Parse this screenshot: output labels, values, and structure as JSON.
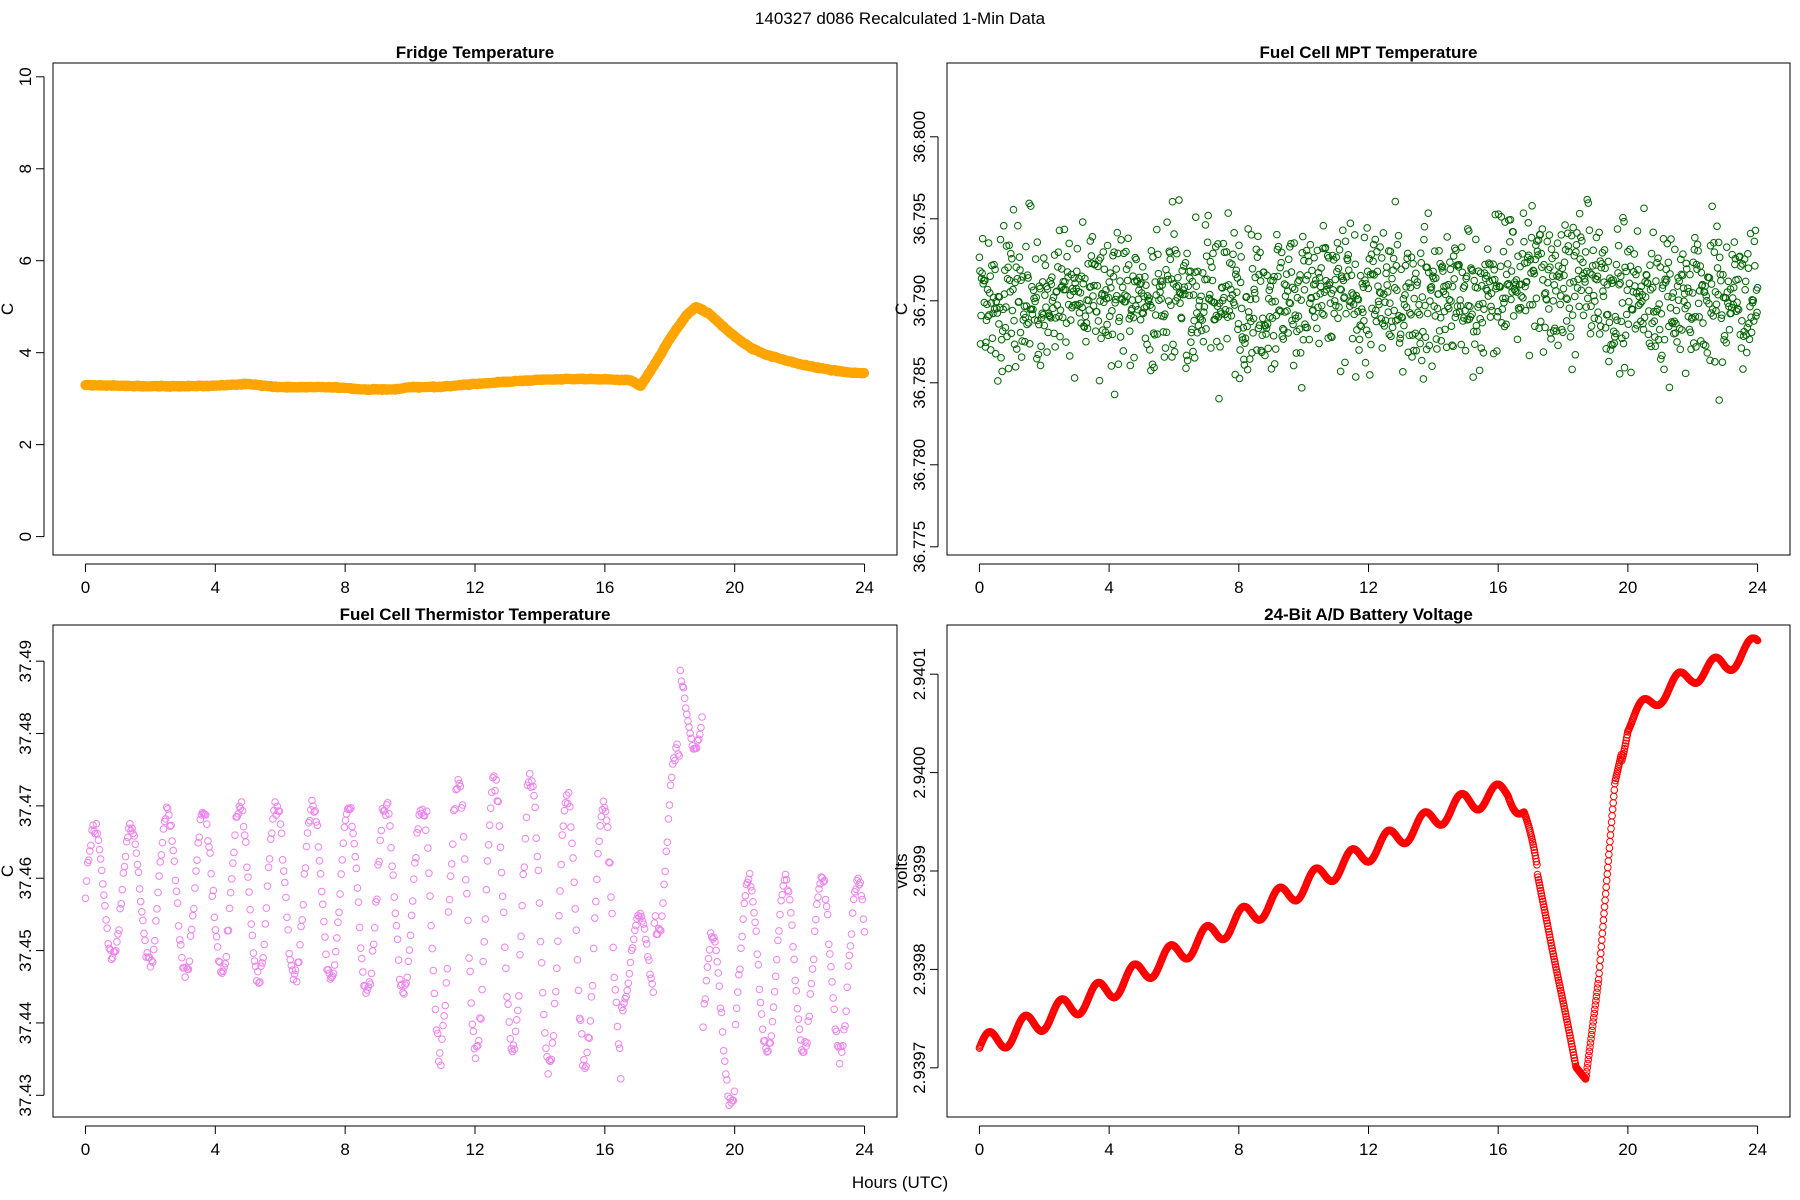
{
  "figure": {
    "title": "140327   d086   Recalculated 1-Min Data",
    "xlabel": "Hours (UTC)"
  },
  "chart_data": [
    {
      "type": "line",
      "title": "Fridge Temperature",
      "ylabel": "C",
      "xlim": [
        -1,
        25
      ],
      "ylim": [
        -0.4,
        10.3
      ],
      "xticks": [
        0,
        4,
        8,
        12,
        16,
        20,
        24
      ],
      "yticks": [
        0,
        2,
        4,
        6,
        8,
        10
      ],
      "ytick_labels": [
        "0",
        "2",
        "4",
        "6",
        "8",
        "10"
      ],
      "color": "#FFA500",
      "x": [
        0,
        1,
        2,
        3,
        4,
        5,
        6,
        7,
        8,
        8.5,
        9,
        9.5,
        10,
        11,
        12,
        13,
        14,
        15,
        16,
        16.8,
        17.1,
        17.5,
        18,
        18.5,
        18.8,
        19.2,
        19.6,
        20,
        20.5,
        21,
        21.5,
        22,
        22.5,
        23,
        23.5,
        24
      ],
      "y": [
        3.3,
        3.28,
        3.27,
        3.27,
        3.28,
        3.32,
        3.25,
        3.25,
        3.24,
        3.2,
        3.2,
        3.2,
        3.25,
        3.26,
        3.32,
        3.37,
        3.41,
        3.43,
        3.42,
        3.4,
        3.27,
        3.7,
        4.3,
        4.8,
        5.0,
        4.85,
        4.6,
        4.35,
        4.1,
        3.95,
        3.85,
        3.75,
        3.68,
        3.62,
        3.57,
        3.55
      ]
    },
    {
      "type": "scatter",
      "title": "Fuel Cell MPT Temperature",
      "ylabel": "C",
      "xlim": [
        -1,
        25
      ],
      "ylim": [
        36.7745,
        36.8045
      ],
      "xticks": [
        0,
        4,
        8,
        12,
        16,
        20,
        24
      ],
      "yticks": [
        36.775,
        36.78,
        36.785,
        36.79,
        36.795,
        36.8
      ],
      "ytick_labels": [
        "36.775",
        "36.780",
        "36.785",
        "36.790",
        "36.795",
        "36.800"
      ],
      "color": "#006400",
      "x_range": [
        0,
        24
      ],
      "n_points": 1440,
      "center": 36.7903,
      "spread": 0.0036
    },
    {
      "type": "scatter",
      "title": "Fuel Cell Thermistor Temperature",
      "ylabel": "C",
      "xlim": [
        -1,
        25
      ],
      "ylim": [
        37.427,
        37.495
      ],
      "xticks": [
        0,
        4,
        8,
        12,
        16,
        20,
        24
      ],
      "yticks": [
        37.43,
        37.44,
        37.45,
        37.46,
        37.47,
        37.48,
        37.49
      ],
      "ytick_labels": [
        "37.43",
        "37.44",
        "37.45",
        "37.46",
        "37.47",
        "37.48",
        "37.49"
      ],
      "color": "#EE82EE",
      "x_range": [
        0,
        24
      ],
      "n_points": 720,
      "period_hours": 1.12,
      "segments": [
        {
          "x": [
            0,
            2
          ],
          "lo": 37.449,
          "hi": 37.467
        },
        {
          "x": [
            2,
            4.5
          ],
          "lo": 37.447,
          "hi": 37.469
        },
        {
          "x": [
            4.5,
            8
          ],
          "lo": 37.446,
          "hi": 37.47
        },
        {
          "x": [
            8,
            10.5
          ],
          "lo": 37.444,
          "hi": 37.47
        },
        {
          "x": [
            10.5,
            14
          ],
          "lo": 37.436,
          "hi": 37.474
        },
        {
          "x": [
            14,
            16.5
          ],
          "lo": 37.434,
          "hi": 37.471
        },
        {
          "x": [
            16.5,
            17.5
          ],
          "lo": 37.442,
          "hi": 37.455
        },
        {
          "x": [
            17.5,
            18.3
          ],
          "lo": 37.452,
          "hi": 37.478
        },
        {
          "x": [
            18.3,
            19
          ],
          "lo": 37.478,
          "hi": 37.49
        },
        {
          "x": [
            19,
            20
          ],
          "lo": 37.429,
          "hi": 37.452
        },
        {
          "x": [
            20,
            24
          ],
          "lo": 37.436,
          "hi": 37.46
        }
      ]
    },
    {
      "type": "line",
      "title": "24-Bit A/D Battery Voltage",
      "ylabel": "volts",
      "xlim": [
        -1,
        25
      ],
      "ylim": [
        2.93965,
        2.94015
      ],
      "xticks": [
        0,
        4,
        8,
        12,
        16,
        20,
        24
      ],
      "yticks": [
        2.9397,
        2.9398,
        2.9399,
        2.94,
        2.9401
      ],
      "ytick_labels": [
        "2.9397",
        "2.9398",
        "2.9399",
        "2.9400",
        "2.9401"
      ],
      "color": "#FF0000",
      "marker": "circle",
      "baseline": {
        "x": [
          0,
          4,
          8,
          12,
          15,
          16.3,
          16.8,
          17.5,
          18.1,
          18.4,
          18.7,
          19.1,
          19.6,
          20,
          21,
          22,
          23,
          24
        ],
        "y": [
          2.93972,
          2.93978,
          2.93985,
          2.93992,
          2.93997,
          2.93998,
          2.93996,
          2.93985,
          2.93975,
          2.9397,
          2.93969,
          2.93979,
          2.93999,
          2.94005,
          2.94008,
          2.9401,
          2.94011,
          2.94013
        ]
      },
      "oscillation": {
        "period_hours": 1.12,
        "amp_start": 1.2e-05,
        "amp_end": 1e-05
      }
    }
  ]
}
